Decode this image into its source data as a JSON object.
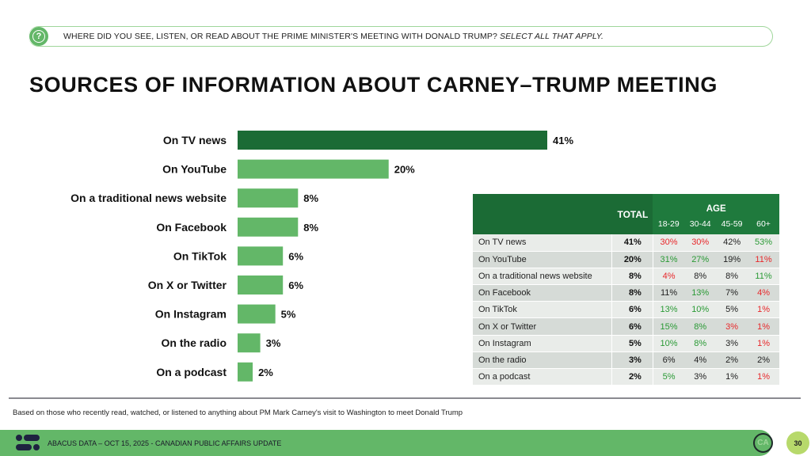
{
  "question": {
    "icon": "question-bubble-icon",
    "text": "WHERE DID YOU SEE, LISTEN, OR READ ABOUT THE PRIME MINISTER'S MEETING WITH DONALD TRUMP?",
    "instruction": "SELECT ALL THAT APPLY."
  },
  "title": "SOURCES OF INFORMATION ABOUT CARNEY–TRUMP MEETING",
  "chart_data": {
    "type": "bar",
    "orientation": "horizontal",
    "title": "SOURCES OF INFORMATION ABOUT CARNEY–TRUMP MEETING",
    "xlabel": "",
    "ylabel": "",
    "xlim": [
      0,
      41
    ],
    "grid": false,
    "categories": [
      "On TV news",
      "On YouTube",
      "On a traditional news website",
      "On Facebook",
      "On TikTok",
      "On X or Twitter",
      "On Instagram",
      "On the radio",
      "On a podcast"
    ],
    "values": [
      41,
      20,
      8,
      8,
      6,
      6,
      5,
      3,
      2
    ],
    "value_labels": [
      "41%",
      "20%",
      "8%",
      "8%",
      "6%",
      "6%",
      "5%",
      "3%",
      "2%"
    ],
    "highlight_color": "#1b6b35",
    "bar_color": "#63b768"
  },
  "table": {
    "total_header": "TOTAL",
    "group_header": "AGE",
    "age_columns": [
      "18-29",
      "30-44",
      "45-59",
      "60+"
    ],
    "colors": {
      "red": "#e8282b",
      "green": "#2a9a35",
      "black": "#222222"
    },
    "rows": [
      {
        "label": "On TV news",
        "total": "41%",
        "ages": [
          {
            "v": "30%",
            "c": "red"
          },
          {
            "v": "30%",
            "c": "red"
          },
          {
            "v": "42%",
            "c": "black"
          },
          {
            "v": "53%",
            "c": "green"
          }
        ]
      },
      {
        "label": "On YouTube",
        "total": "20%",
        "ages": [
          {
            "v": "31%",
            "c": "green"
          },
          {
            "v": "27%",
            "c": "green"
          },
          {
            "v": "19%",
            "c": "black"
          },
          {
            "v": "11%",
            "c": "red"
          }
        ]
      },
      {
        "label": "On a traditional news website",
        "total": "8%",
        "ages": [
          {
            "v": "4%",
            "c": "red"
          },
          {
            "v": "8%",
            "c": "black"
          },
          {
            "v": "8%",
            "c": "black"
          },
          {
            "v": "11%",
            "c": "green"
          }
        ]
      },
      {
        "label": "On Facebook",
        "total": "8%",
        "ages": [
          {
            "v": "11%",
            "c": "black"
          },
          {
            "v": "13%",
            "c": "green"
          },
          {
            "v": "7%",
            "c": "black"
          },
          {
            "v": "4%",
            "c": "red"
          }
        ]
      },
      {
        "label": "On TikTok",
        "total": "6%",
        "ages": [
          {
            "v": "13%",
            "c": "green"
          },
          {
            "v": "10%",
            "c": "green"
          },
          {
            "v": "5%",
            "c": "black"
          },
          {
            "v": "1%",
            "c": "red"
          }
        ]
      },
      {
        "label": "On X or Twitter",
        "total": "6%",
        "ages": [
          {
            "v": "15%",
            "c": "green"
          },
          {
            "v": "8%",
            "c": "green"
          },
          {
            "v": "3%",
            "c": "red"
          },
          {
            "v": "1%",
            "c": "red"
          }
        ]
      },
      {
        "label": "On Instagram",
        "total": "5%",
        "ages": [
          {
            "v": "10%",
            "c": "green"
          },
          {
            "v": "8%",
            "c": "green"
          },
          {
            "v": "3%",
            "c": "black"
          },
          {
            "v": "1%",
            "c": "red"
          }
        ]
      },
      {
        "label": "On the radio",
        "total": "3%",
        "ages": [
          {
            "v": "6%",
            "c": "black"
          },
          {
            "v": "4%",
            "c": "black"
          },
          {
            "v": "2%",
            "c": "black"
          },
          {
            "v": "2%",
            "c": "black"
          }
        ]
      },
      {
        "label": "On a podcast",
        "total": "2%",
        "ages": [
          {
            "v": "5%",
            "c": "green"
          },
          {
            "v": "3%",
            "c": "black"
          },
          {
            "v": "1%",
            "c": "black"
          },
          {
            "v": "1%",
            "c": "red"
          }
        ]
      }
    ]
  },
  "footnote": "Based on those who recently read, watched, or listened to anything about PM Mark Carney's visit to Washington to meet Donald Trump",
  "footer": {
    "logo": "abacus-logo-icon",
    "text": "ABACUS DATA – OCT 15, 2025 - CANADIAN PUBLIC AFFAIRS UPDATE",
    "badge": "CA",
    "page_number": "30"
  }
}
